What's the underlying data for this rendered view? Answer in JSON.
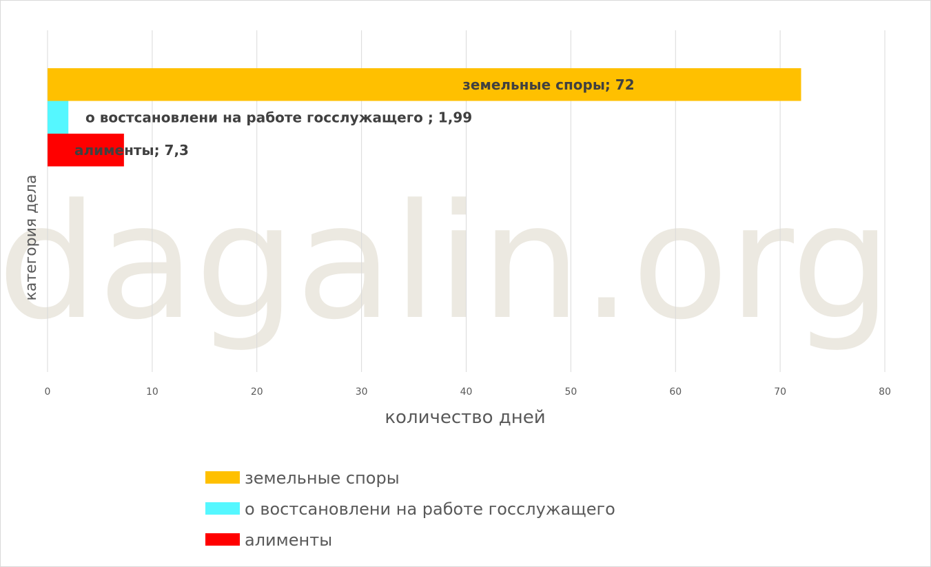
{
  "chart_data": {
    "type": "bar",
    "orientation": "horizontal",
    "xlabel": "количество дней",
    "ylabel": "категория дела",
    "xlim": [
      0,
      80
    ],
    "x_ticks": [
      0,
      10,
      20,
      30,
      40,
      50,
      60,
      70,
      80
    ],
    "grid": "vertical",
    "legend_position": "bottom",
    "series": [
      {
        "name": "земельные споры",
        "value": 72,
        "label": "земельные споры; 72",
        "color": "#FFC000"
      },
      {
        "name": "о востсановлени на работе госслужащего",
        "value": 1.99,
        "label": "о востсановлени на работе госслужащего ; 1,99",
        "color": "#55F7FF"
      },
      {
        "name": "алименты",
        "value": 7.3,
        "label": "алименты; 7,3",
        "color": "#FF0000"
      }
    ]
  },
  "watermark": "dagalin.org"
}
